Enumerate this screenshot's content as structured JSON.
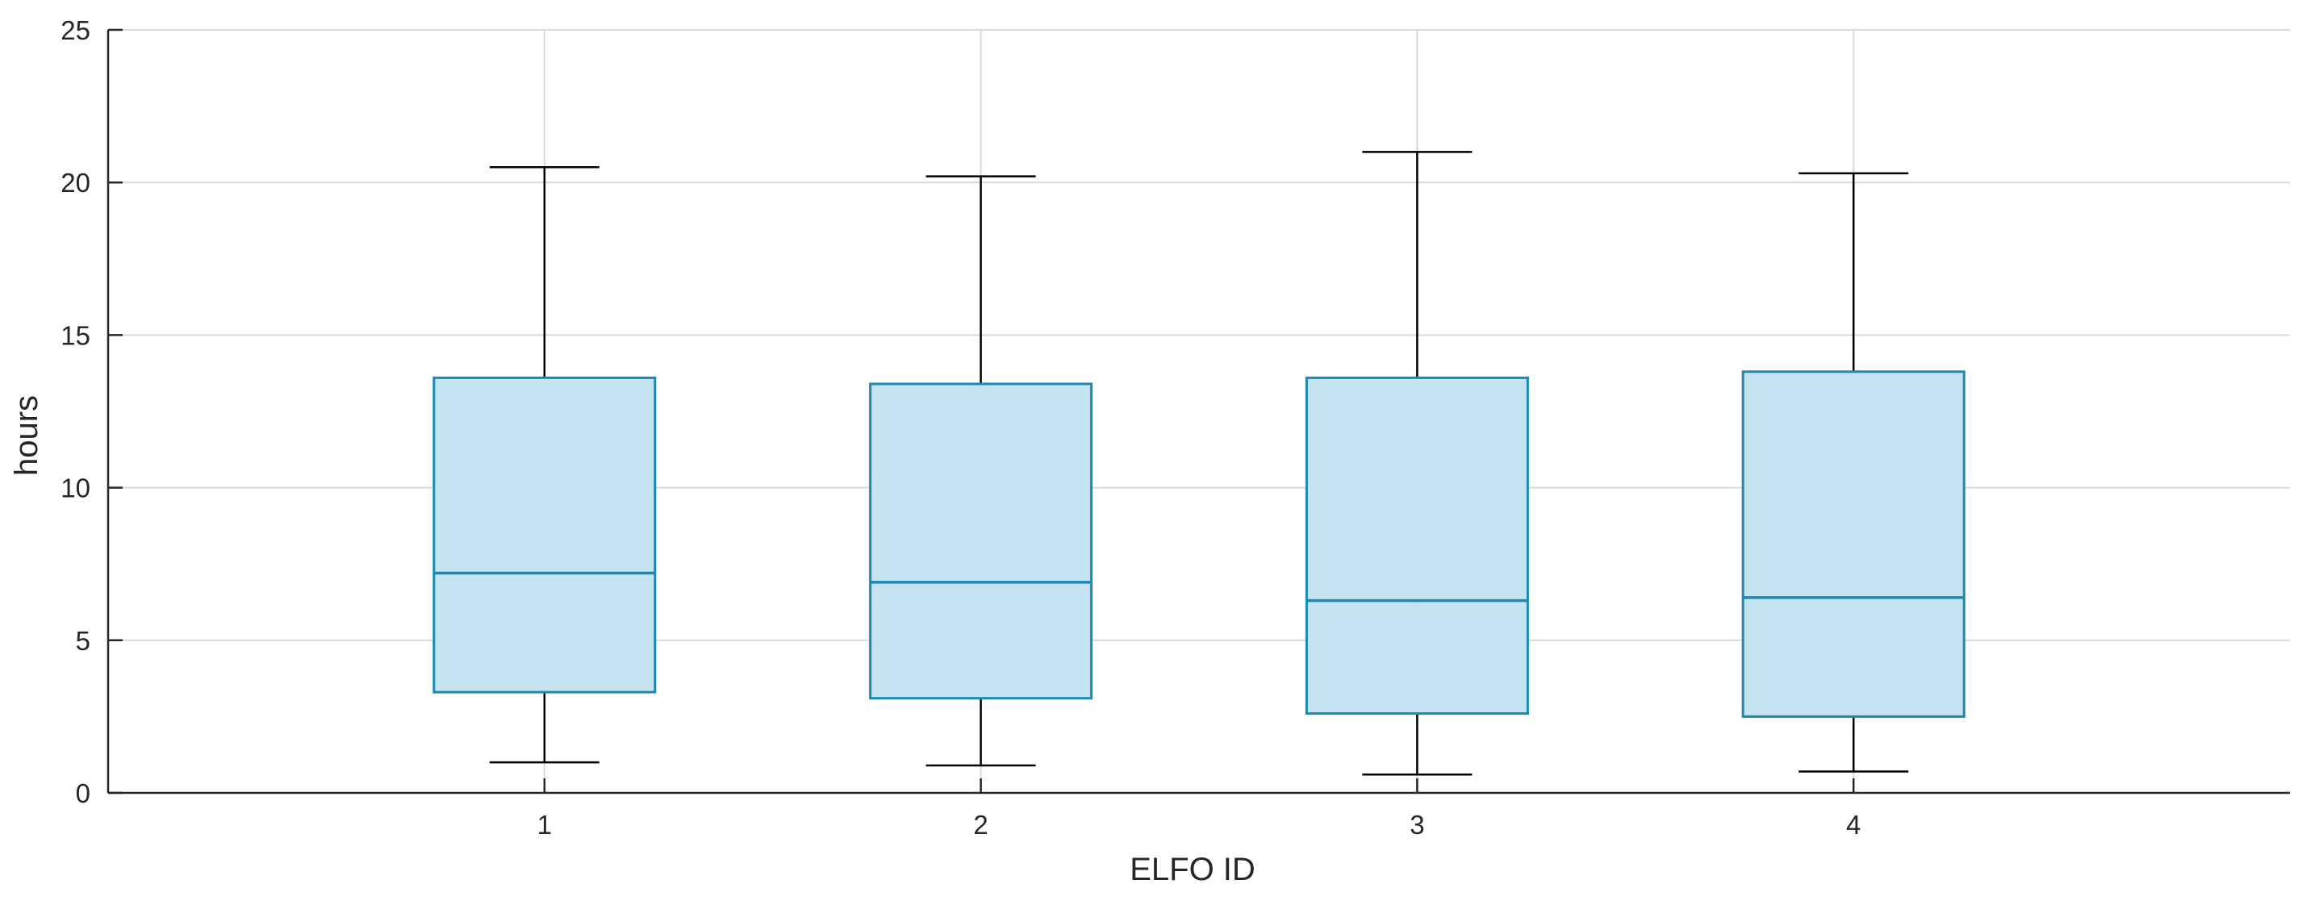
{
  "chart_data": {
    "type": "box",
    "xlabel": "ELFO ID",
    "ylabel": "hours",
    "ylim": [
      0,
      25
    ],
    "yticks": [
      0,
      5,
      10,
      15,
      20,
      25
    ],
    "categories": [
      "1",
      "2",
      "3",
      "4"
    ],
    "boxes": [
      {
        "category": "1",
        "whisker_low": 1.0,
        "q1": 3.3,
        "median": 7.2,
        "q3": 13.6,
        "whisker_high": 20.5
      },
      {
        "category": "2",
        "whisker_low": 0.9,
        "q1": 3.1,
        "median": 6.9,
        "q3": 13.4,
        "whisker_high": 20.2
      },
      {
        "category": "3",
        "whisker_low": 0.6,
        "q1": 2.6,
        "median": 6.3,
        "q3": 13.6,
        "whisker_high": 21.0
      },
      {
        "category": "4",
        "whisker_low": 0.7,
        "q1": 2.5,
        "median": 6.4,
        "q3": 13.8,
        "whisker_high": 20.3
      }
    ],
    "grid": true,
    "colors": {
      "box_fill": "#c2e1f0",
      "box_edge": "#1a8ab4",
      "whisker": "#000000",
      "grid": "#d9d9d9"
    }
  }
}
